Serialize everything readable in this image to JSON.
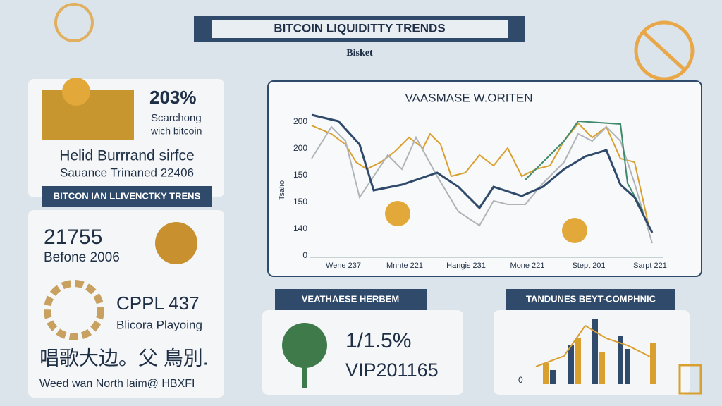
{
  "header": {
    "title": "BITCOIN LIQUIDITTY TRENDS",
    "logo": "Bisket"
  },
  "left_top": {
    "stat": "203%",
    "stat_note_1": "Scarchong",
    "stat_note_2": "wich bitcoin",
    "line_1": "Helid Burrrand sirfce",
    "line_2": "Sauance Trinaned 22406"
  },
  "left_banner": "BITCON IAN LLIVENCTKY TRENS",
  "left_bottom": {
    "stat": "21755",
    "stat_note": "Befone 2006",
    "stat_2": "CPPL 437",
    "stat_2_note": "Blicora Playoing",
    "glyphs": "唱歌大边。父 鳥別.",
    "footer": "Weed wan North laim@ HBXFI"
  },
  "main_chart": {
    "title": "VAASMASE W.ORITEN",
    "y_axis_title": "Tsalio",
    "y_labels": [
      "200",
      "200",
      "150",
      "150",
      "140",
      "0"
    ],
    "x_labels": [
      "Wene 237",
      "Mnnte 221",
      "Hangis 231",
      "Mone 221",
      "Stept 201",
      "Sarpt 221"
    ]
  },
  "middle_panel": {
    "banner": "VEATHAESE HERBEM",
    "stat": "1/1.5%",
    "code": "VIP201165"
  },
  "right_panel": {
    "banner": "TANDUNES BEYT-COMPHNIC",
    "y_label": "0"
  }
}
